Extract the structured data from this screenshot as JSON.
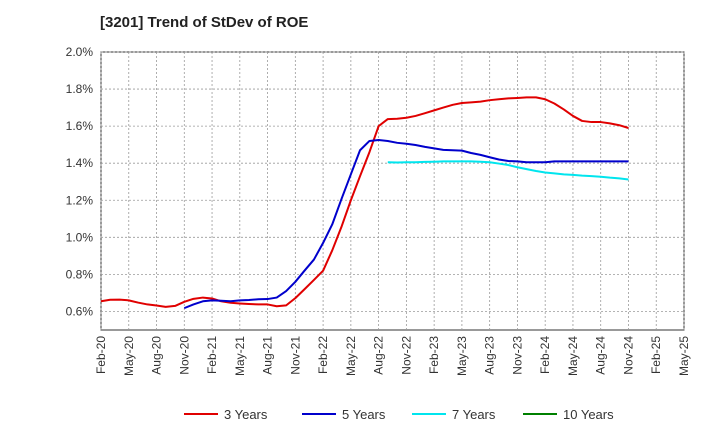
{
  "chart_data": {
    "type": "line",
    "title": "[3201]  Trend of StDev of ROE",
    "xlabel": "",
    "ylabel": "",
    "y_ticks": [
      "0.6%",
      "0.8%",
      "1.0%",
      "1.2%",
      "1.4%",
      "1.6%",
      "1.8%",
      "2.0%"
    ],
    "y_tick_values": [
      0.6,
      0.8,
      1.0,
      1.2,
      1.4,
      1.6,
      1.8,
      2.0
    ],
    "ylim": [
      0.5,
      2.0
    ],
    "x_ticks": [
      "Feb-20",
      "May-20",
      "Aug-20",
      "Nov-20",
      "Feb-21",
      "May-21",
      "Aug-21",
      "Nov-21",
      "Feb-22",
      "May-22",
      "Aug-22",
      "Nov-22",
      "Feb-23",
      "May-23",
      "Aug-23",
      "Nov-23",
      "Feb-24",
      "May-24",
      "Aug-24",
      "Nov-24",
      "Feb-25",
      "May-25"
    ],
    "xlim": [
      0,
      21
    ],
    "grid": true,
    "legend_position": "bottom",
    "series": [
      {
        "name": "3 Years",
        "color": "#e00000",
        "points": [
          [
            0,
            0.655
          ],
          [
            0.33,
            0.663
          ],
          [
            0.67,
            0.664
          ],
          [
            1,
            0.66
          ],
          [
            1.33,
            0.648
          ],
          [
            1.67,
            0.638
          ],
          [
            2,
            0.632
          ],
          [
            2.33,
            0.625
          ],
          [
            2.67,
            0.63
          ],
          [
            3,
            0.652
          ],
          [
            3.33,
            0.668
          ],
          [
            3.67,
            0.675
          ],
          [
            4,
            0.67
          ],
          [
            4.33,
            0.655
          ],
          [
            4.67,
            0.647
          ],
          [
            5,
            0.643
          ],
          [
            5.33,
            0.64
          ],
          [
            5.67,
            0.638
          ],
          [
            6,
            0.638
          ],
          [
            6.33,
            0.628
          ],
          [
            6.67,
            0.633
          ],
          [
            7,
            0.672
          ],
          [
            7.33,
            0.72
          ],
          [
            7.67,
            0.77
          ],
          [
            8,
            0.82
          ],
          [
            8.33,
            0.93
          ],
          [
            8.67,
            1.06
          ],
          [
            9,
            1.2
          ],
          [
            9.33,
            1.33
          ],
          [
            9.67,
            1.46
          ],
          [
            10,
            1.6
          ],
          [
            10.33,
            1.638
          ],
          [
            10.67,
            1.64
          ],
          [
            11,
            1.645
          ],
          [
            11.33,
            1.655
          ],
          [
            11.67,
            1.67
          ],
          [
            12,
            1.685
          ],
          [
            12.33,
            1.7
          ],
          [
            12.67,
            1.715
          ],
          [
            13,
            1.725
          ],
          [
            13.33,
            1.728
          ],
          [
            13.67,
            1.732
          ],
          [
            14,
            1.74
          ],
          [
            14.33,
            1.745
          ],
          [
            14.67,
            1.75
          ],
          [
            15,
            1.752
          ],
          [
            15.33,
            1.755
          ],
          [
            15.67,
            1.755
          ],
          [
            16,
            1.745
          ],
          [
            16.33,
            1.722
          ],
          [
            16.67,
            1.69
          ],
          [
            17,
            1.655
          ],
          [
            17.33,
            1.628
          ],
          [
            17.67,
            1.622
          ],
          [
            18,
            1.622
          ],
          [
            18.33,
            1.615
          ],
          [
            18.67,
            1.605
          ],
          [
            19,
            1.59
          ]
        ]
      },
      {
        "name": "5 Years",
        "color": "#0000cc",
        "points": [
          [
            3,
            0.618
          ],
          [
            3.33,
            0.638
          ],
          [
            3.67,
            0.655
          ],
          [
            4,
            0.66
          ],
          [
            4.33,
            0.658
          ],
          [
            4.67,
            0.655
          ],
          [
            5,
            0.66
          ],
          [
            5.33,
            0.662
          ],
          [
            5.67,
            0.666
          ],
          [
            6,
            0.667
          ],
          [
            6.33,
            0.675
          ],
          [
            6.67,
            0.71
          ],
          [
            7,
            0.76
          ],
          [
            7.33,
            0.82
          ],
          [
            7.67,
            0.88
          ],
          [
            8,
            0.97
          ],
          [
            8.33,
            1.07
          ],
          [
            8.67,
            1.21
          ],
          [
            9,
            1.34
          ],
          [
            9.33,
            1.47
          ],
          [
            9.67,
            1.52
          ],
          [
            10,
            1.525
          ],
          [
            10.33,
            1.52
          ],
          [
            10.67,
            1.51
          ],
          [
            11,
            1.505
          ],
          [
            11.33,
            1.498
          ],
          [
            11.67,
            1.488
          ],
          [
            12,
            1.48
          ],
          [
            12.33,
            1.472
          ],
          [
            12.67,
            1.47
          ],
          [
            13,
            1.468
          ],
          [
            13.33,
            1.455
          ],
          [
            13.67,
            1.445
          ],
          [
            14,
            1.432
          ],
          [
            14.33,
            1.42
          ],
          [
            14.67,
            1.412
          ],
          [
            15,
            1.41
          ],
          [
            15.33,
            1.405
          ],
          [
            15.67,
            1.405
          ],
          [
            16,
            1.405
          ],
          [
            16.33,
            1.41
          ],
          [
            16.67,
            1.41
          ],
          [
            17,
            1.41
          ],
          [
            17.33,
            1.41
          ],
          [
            17.67,
            1.41
          ],
          [
            18,
            1.41
          ],
          [
            18.33,
            1.41
          ],
          [
            18.67,
            1.41
          ],
          [
            19,
            1.41
          ]
        ]
      },
      {
        "name": "7 Years",
        "color": "#00e5ee",
        "points": [
          [
            10.33,
            1.405
          ],
          [
            10.67,
            1.404
          ],
          [
            11,
            1.405
          ],
          [
            11.33,
            1.405
          ],
          [
            11.67,
            1.407
          ],
          [
            12,
            1.408
          ],
          [
            12.33,
            1.41
          ],
          [
            12.67,
            1.41
          ],
          [
            13,
            1.41
          ],
          [
            13.33,
            1.41
          ],
          [
            13.67,
            1.408
          ],
          [
            14,
            1.405
          ],
          [
            14.33,
            1.398
          ],
          [
            14.67,
            1.39
          ],
          [
            15,
            1.378
          ],
          [
            15.33,
            1.368
          ],
          [
            15.67,
            1.358
          ],
          [
            16,
            1.35
          ],
          [
            16.33,
            1.345
          ],
          [
            16.67,
            1.34
          ],
          [
            17,
            1.337
          ],
          [
            17.33,
            1.333
          ],
          [
            17.67,
            1.33
          ],
          [
            18,
            1.327
          ],
          [
            18.33,
            1.322
          ],
          [
            18.67,
            1.318
          ],
          [
            19,
            1.312
          ]
        ]
      },
      {
        "name": "10 Years",
        "color": "#008000",
        "points": []
      }
    ]
  }
}
